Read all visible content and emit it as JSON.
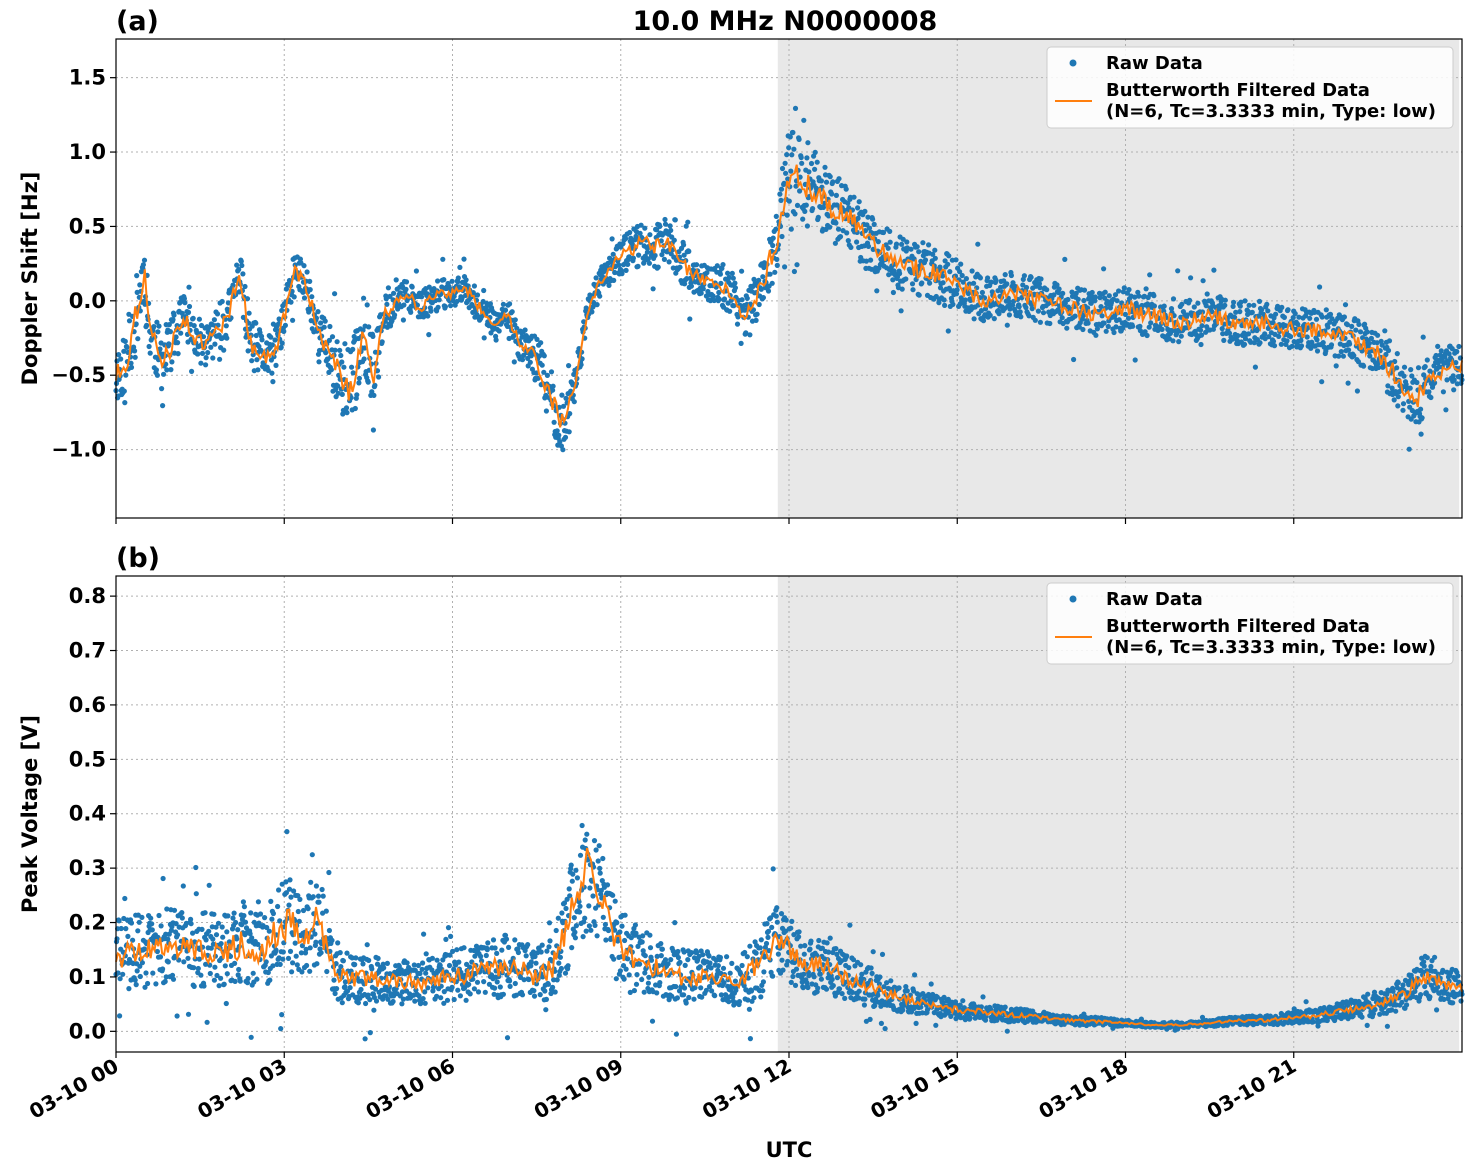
{
  "figure": {
    "title": "10.0 MHz N0000008",
    "xlabel": "UTC",
    "raw_color": "#1f77b4",
    "filtered_color": "#ff7f0e",
    "shade_color": "#e8e8e8"
  },
  "chart_data": [
    {
      "type": "scatter",
      "panel_label": "(a)",
      "ylabel": "Doppler Shift [Hz]",
      "xlim": [
        "03-10 00:00",
        "03-10 24:00"
      ],
      "ylim": [
        -1.46,
        1.76
      ],
      "x_ticks": [
        "03-10 00",
        "03-10 03",
        "03-10 06",
        "03-10 09",
        "03-10 12",
        "03-10 15",
        "03-10 18",
        "03-10 21"
      ],
      "y_ticks": [
        1.5,
        1.0,
        0.5,
        0.0,
        -0.5,
        -1.0
      ],
      "y_tick_labels": [
        "1.5",
        "1.0",
        "0.5",
        "0.0",
        "−0.5",
        "−1.0"
      ],
      "grid": true,
      "legend": "top-right",
      "shaded_interval_utc_hours": [
        11.8,
        23.95
      ],
      "series": [
        {
          "name": "Raw Data",
          "x_utc_hours": [
            0,
            0.2,
            0.4,
            0.5,
            0.6,
            0.8,
            1,
            1.2,
            1.4,
            1.6,
            1.8,
            2,
            2.2,
            2.4,
            2.6,
            2.8,
            3,
            3.2,
            3.4,
            3.6,
            3.8,
            4,
            4.2,
            4.4,
            4.6,
            4.8,
            5,
            5.2,
            5.4,
            5.6,
            5.8,
            6,
            6.2,
            6.4,
            6.6,
            6.8,
            7,
            7.2,
            7.4,
            7.6,
            7.8,
            8,
            8.2,
            8.4,
            8.6,
            8.8,
            9,
            9.2,
            9.4,
            9.6,
            9.8,
            10,
            10.2,
            10.4,
            10.6,
            10.8,
            11,
            11.2,
            11.4,
            11.6,
            11.8,
            12,
            12.2,
            12.4,
            12.6,
            12.8,
            13,
            13.2,
            13.4,
            13.6,
            13.8,
            14,
            14.5,
            15,
            15.5,
            16,
            16.5,
            17,
            17.5,
            18,
            18.5,
            19,
            19.5,
            20,
            20.5,
            21,
            21.5,
            22,
            22.5,
            22.8,
            23,
            23.2,
            23.5,
            23.8,
            24
          ],
          "center": [
            -0.5,
            -0.4,
            0,
            0.2,
            -0.2,
            -0.4,
            -0.3,
            -0.1,
            -0.25,
            -0.3,
            -0.2,
            -0.1,
            0.2,
            -0.3,
            -0.35,
            -0.4,
            -0.1,
            0.2,
            0.1,
            -0.2,
            -0.35,
            -0.5,
            -0.6,
            -0.2,
            -0.5,
            -0.1,
            0,
            0.05,
            -0.05,
            0,
            0.05,
            0.05,
            0.1,
            0,
            -0.1,
            -0.15,
            -0.1,
            -0.3,
            -0.3,
            -0.5,
            -0.7,
            -0.85,
            -0.5,
            -0.1,
            0.1,
            0.2,
            0.3,
            0.35,
            0.4,
            0.35,
            0.4,
            0.3,
            0.2,
            0.15,
            0.1,
            0.1,
            0.05,
            -0.1,
            0,
            0.2,
            0.45,
            0.85,
            0.8,
            0.75,
            0.7,
            0.6,
            0.6,
            0.5,
            0.4,
            0.35,
            0.3,
            0.25,
            0.2,
            0.1,
            0,
            0.05,
            0,
            -0.05,
            -0.1,
            -0.05,
            -0.1,
            -0.15,
            -0.1,
            -0.15,
            -0.15,
            -0.2,
            -0.2,
            -0.25,
            -0.35,
            -0.5,
            -0.6,
            -0.65,
            -0.5,
            -0.45,
            -0.45
          ],
          "spread": [
            0.2,
            0.2,
            0.25,
            0.25,
            0.2,
            0.2,
            0.2,
            0.15,
            0.15,
            0.15,
            0.15,
            0.15,
            0.15,
            0.2,
            0.15,
            0.15,
            0.15,
            0.15,
            0.15,
            0.15,
            0.2,
            0.25,
            0.3,
            0.25,
            0.25,
            0.15,
            0.1,
            0.1,
            0.1,
            0.1,
            0.1,
            0.1,
            0.1,
            0.1,
            0.1,
            0.1,
            0.1,
            0.1,
            0.15,
            0.2,
            0.2,
            0.2,
            0.15,
            0.1,
            0.1,
            0.1,
            0.12,
            0.15,
            0.15,
            0.15,
            0.15,
            0.15,
            0.15,
            0.12,
            0.12,
            0.15,
            0.15,
            0.15,
            0.15,
            0.2,
            0.25,
            0.3,
            0.3,
            0.3,
            0.25,
            0.25,
            0.2,
            0.2,
            0.2,
            0.18,
            0.18,
            0.18,
            0.18,
            0.18,
            0.15,
            0.15,
            0.15,
            0.15,
            0.15,
            0.15,
            0.15,
            0.15,
            0.15,
            0.15,
            0.15,
            0.15,
            0.15,
            0.15,
            0.15,
            0.2,
            0.2,
            0.2,
            0.15,
            0.15,
            0.15
          ]
        },
        {
          "name": "Butterworth Filtered Data\n(N=6, Tc=3.3333 min, Type: low)",
          "x_utc_hours": [
            0,
            0.2,
            0.4,
            0.5,
            0.6,
            0.8,
            1,
            1.2,
            1.4,
            1.6,
            1.8,
            2,
            2.2,
            2.4,
            2.6,
            2.8,
            3,
            3.2,
            3.4,
            3.6,
            3.8,
            4,
            4.2,
            4.4,
            4.6,
            4.8,
            5,
            5.2,
            5.4,
            5.6,
            5.8,
            6,
            6.2,
            6.4,
            6.6,
            6.8,
            7,
            7.2,
            7.4,
            7.6,
            7.8,
            8,
            8.2,
            8.4,
            8.6,
            8.8,
            9,
            9.2,
            9.4,
            9.6,
            9.8,
            10,
            10.2,
            10.4,
            10.6,
            10.8,
            11,
            11.2,
            11.4,
            11.6,
            11.8,
            12,
            12.2,
            12.4,
            12.6,
            12.8,
            13,
            13.2,
            13.4,
            13.6,
            13.8,
            14,
            14.5,
            15,
            15.5,
            16,
            16.5,
            17,
            17.5,
            18,
            18.5,
            19,
            19.5,
            20,
            20.5,
            21,
            21.5,
            22,
            22.5,
            22.8,
            23,
            23.2,
            23.5,
            23.8,
            24
          ],
          "y": [
            -0.5,
            -0.4,
            0,
            0.2,
            -0.2,
            -0.4,
            -0.3,
            -0.1,
            -0.25,
            -0.3,
            -0.2,
            -0.1,
            0.2,
            -0.3,
            -0.35,
            -0.4,
            -0.1,
            0.2,
            0.1,
            -0.2,
            -0.35,
            -0.5,
            -0.6,
            -0.2,
            -0.5,
            -0.1,
            0,
            0.05,
            -0.05,
            0,
            0.05,
            0.05,
            0.1,
            0,
            -0.1,
            -0.15,
            -0.1,
            -0.3,
            -0.3,
            -0.5,
            -0.7,
            -0.85,
            -0.5,
            -0.1,
            0.1,
            0.2,
            0.3,
            0.35,
            0.4,
            0.35,
            0.4,
            0.3,
            0.2,
            0.15,
            0.1,
            0.1,
            0.05,
            -0.1,
            0,
            0.2,
            0.45,
            0.85,
            0.8,
            0.75,
            0.7,
            0.6,
            0.6,
            0.5,
            0.4,
            0.35,
            0.3,
            0.25,
            0.2,
            0.1,
            0,
            0.05,
            0,
            -0.05,
            -0.1,
            -0.05,
            -0.1,
            -0.15,
            -0.1,
            -0.15,
            -0.15,
            -0.2,
            -0.2,
            -0.25,
            -0.35,
            -0.5,
            -0.6,
            -0.65,
            -0.5,
            -0.45,
            -0.45
          ]
        }
      ]
    },
    {
      "type": "scatter",
      "panel_label": "(b)",
      "ylabel": "Peak Voltage [V]",
      "xlim": [
        "03-10 00:00",
        "03-10 24:00"
      ],
      "ylim": [
        -0.038,
        0.837
      ],
      "x_ticks": [
        "03-10 00",
        "03-10 03",
        "03-10 06",
        "03-10 09",
        "03-10 12",
        "03-10 15",
        "03-10 18",
        "03-10 21"
      ],
      "y_ticks": [
        0.8,
        0.7,
        0.6,
        0.5,
        0.4,
        0.3,
        0.2,
        0.1,
        0.0
      ],
      "y_tick_labels": [
        "0.8",
        "0.7",
        "0.6",
        "0.5",
        "0.4",
        "0.3",
        "0.2",
        "0.1",
        "0.0"
      ],
      "grid": true,
      "legend": "top-right",
      "shaded_interval_utc_hours": [
        11.8,
        23.95
      ],
      "series": [
        {
          "name": "Raw Data",
          "x_utc_hours": [
            0,
            0.5,
            1,
            1.5,
            2,
            2.3,
            2.6,
            3,
            3.3,
            3.6,
            4,
            4.5,
            5,
            5.5,
            6,
            6.5,
            7,
            7.5,
            7.8,
            8,
            8.2,
            8.4,
            8.6,
            8.8,
            9,
            9.5,
            10,
            10.5,
            11,
            11.5,
            11.8,
            12,
            12.3,
            12.6,
            13,
            13.5,
            14,
            14.5,
            15,
            15.5,
            16,
            16.5,
            17,
            17.5,
            18,
            18.5,
            19,
            19.5,
            20,
            20.5,
            21,
            21.5,
            22,
            22.5,
            23,
            23.3,
            23.6,
            24
          ],
          "center": [
            0.14,
            0.15,
            0.16,
            0.15,
            0.15,
            0.16,
            0.15,
            0.2,
            0.18,
            0.2,
            0.1,
            0.1,
            0.09,
            0.09,
            0.1,
            0.11,
            0.12,
            0.1,
            0.12,
            0.18,
            0.25,
            0.3,
            0.25,
            0.2,
            0.15,
            0.12,
            0.1,
            0.1,
            0.09,
            0.12,
            0.18,
            0.15,
            0.12,
            0.12,
            0.1,
            0.08,
            0.06,
            0.05,
            0.04,
            0.035,
            0.03,
            0.025,
            0.02,
            0.018,
            0.015,
            0.012,
            0.012,
            0.015,
            0.02,
            0.02,
            0.025,
            0.03,
            0.04,
            0.05,
            0.07,
            0.1,
            0.09,
            0.08
          ],
          "spread": [
            0.07,
            0.07,
            0.07,
            0.07,
            0.07,
            0.08,
            0.07,
            0.09,
            0.08,
            0.09,
            0.05,
            0.05,
            0.04,
            0.04,
            0.05,
            0.05,
            0.06,
            0.05,
            0.06,
            0.08,
            0.1,
            0.12,
            0.1,
            0.08,
            0.07,
            0.06,
            0.05,
            0.05,
            0.045,
            0.06,
            0.07,
            0.06,
            0.05,
            0.05,
            0.045,
            0.035,
            0.025,
            0.02,
            0.018,
            0.015,
            0.013,
            0.011,
            0.009,
            0.008,
            0.006,
            0.005,
            0.005,
            0.006,
            0.008,
            0.009,
            0.011,
            0.013,
            0.017,
            0.02,
            0.03,
            0.04,
            0.035,
            0.03
          ]
        },
        {
          "name": "Butterworth Filtered Data\n(N=6, Tc=3.3333 min, Type: low)",
          "x_utc_hours": [
            0,
            0.5,
            1,
            1.5,
            2,
            2.3,
            2.6,
            3,
            3.3,
            3.6,
            4,
            4.5,
            5,
            5.5,
            6,
            6.5,
            7,
            7.5,
            7.8,
            8,
            8.2,
            8.4,
            8.6,
            8.8,
            9,
            9.5,
            10,
            10.5,
            11,
            11.5,
            11.8,
            12,
            12.3,
            12.6,
            13,
            13.5,
            14,
            14.5,
            15,
            15.5,
            16,
            16.5,
            17,
            17.5,
            18,
            18.5,
            19,
            19.5,
            20,
            20.5,
            21,
            21.5,
            22,
            22.5,
            23,
            23.3,
            23.6,
            24
          ],
          "y": [
            0.14,
            0.15,
            0.16,
            0.15,
            0.15,
            0.16,
            0.15,
            0.2,
            0.18,
            0.2,
            0.1,
            0.1,
            0.09,
            0.09,
            0.1,
            0.11,
            0.12,
            0.1,
            0.12,
            0.18,
            0.25,
            0.3,
            0.25,
            0.2,
            0.15,
            0.12,
            0.1,
            0.1,
            0.09,
            0.12,
            0.18,
            0.15,
            0.12,
            0.12,
            0.1,
            0.08,
            0.06,
            0.05,
            0.04,
            0.035,
            0.03,
            0.025,
            0.02,
            0.018,
            0.015,
            0.012,
            0.012,
            0.015,
            0.02,
            0.02,
            0.025,
            0.03,
            0.04,
            0.05,
            0.07,
            0.1,
            0.09,
            0.08
          ]
        }
      ]
    }
  ]
}
